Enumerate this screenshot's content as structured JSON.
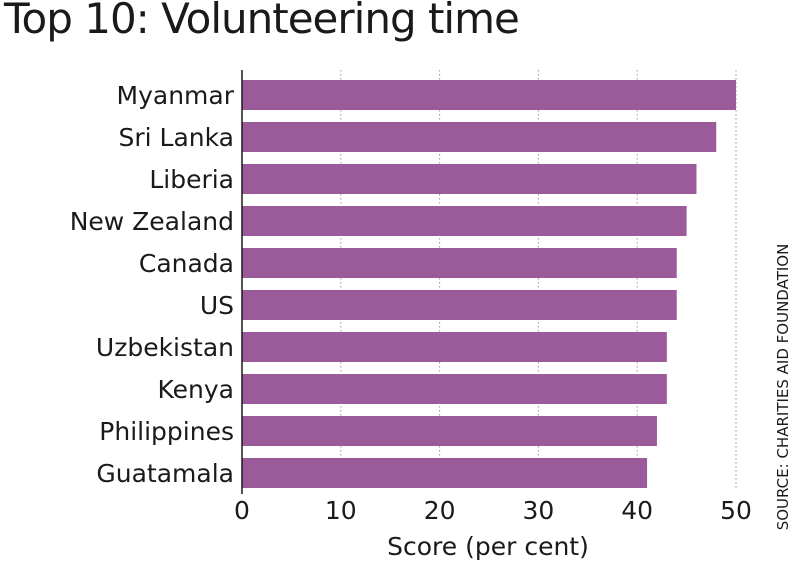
{
  "chart_data": {
    "type": "bar",
    "orientation": "horizontal",
    "title": "Top 10: Volunteering time",
    "xlabel": "Score (per cent)",
    "ylabel": "",
    "categories": [
      "Myanmar",
      "Sri Lanka",
      "Liberia",
      "New Zealand",
      "Canada",
      "US",
      "Uzbekistan",
      "Kenya",
      "Philippines",
      "Guatamala"
    ],
    "values": [
      50,
      48,
      46,
      45,
      44,
      44,
      43,
      43,
      42,
      41
    ],
    "xlim": [
      0,
      50
    ],
    "xticks": [
      0,
      10,
      20,
      30,
      40,
      50
    ],
    "grid": true,
    "bar_color": "#9b5b9b",
    "source": "SOURCE: CHARITIES AID FOUNDATION"
  }
}
